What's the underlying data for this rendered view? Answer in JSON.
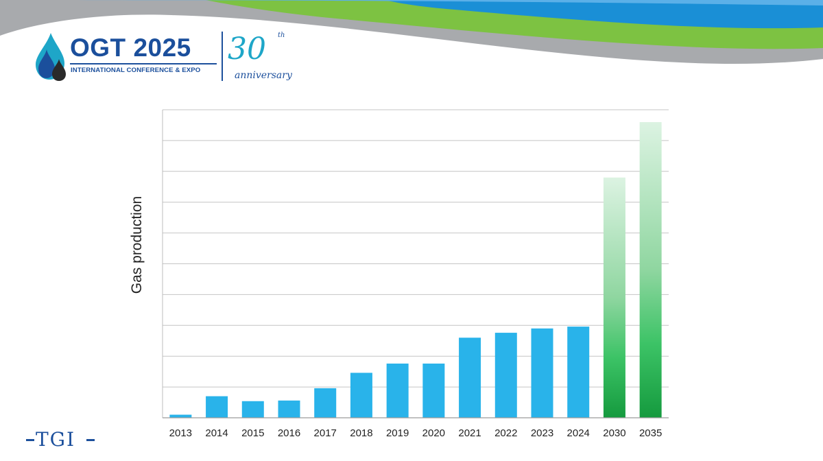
{
  "header": {
    "logo_title": "OGT 2025",
    "logo_subtitle": "INTERNATIONAL CONFERENCE & EXPO",
    "anniversary_number": "30",
    "anniversary_suffix": "th",
    "anniversary_text": "anniversary",
    "colors": {
      "wave_grey": "#a8aaad",
      "wave_green": "#7dc242",
      "wave_blue": "#1a8fd6",
      "brand_blue": "#1b4f9c"
    }
  },
  "footer": {
    "logo_text": "TGI"
  },
  "chart_data": {
    "type": "bar",
    "title": "",
    "xlabel": "",
    "ylabel": "Gas production",
    "categories": [
      "2013",
      "2014",
      "2015",
      "2016",
      "2017",
      "2018",
      "2019",
      "2020",
      "2021",
      "2022",
      "2023",
      "2024",
      "2030",
      "2035"
    ],
    "values": [
      0.05,
      0.35,
      0.27,
      0.28,
      0.48,
      0.73,
      0.88,
      0.88,
      1.3,
      1.38,
      1.45,
      1.48,
      3.9,
      4.8
    ],
    "projected": [
      false,
      false,
      false,
      false,
      false,
      false,
      false,
      false,
      false,
      false,
      false,
      false,
      true,
      true
    ],
    "ylim": [
      0,
      5
    ],
    "grid_lines": 10,
    "grid": true,
    "y_tick_labels": false,
    "legend": "none",
    "colors": {
      "actual": "#29b3ea",
      "projected_top": "#dcf3e2",
      "projected_bottom": "#159a3e",
      "grid": "#c4c4c4"
    }
  }
}
